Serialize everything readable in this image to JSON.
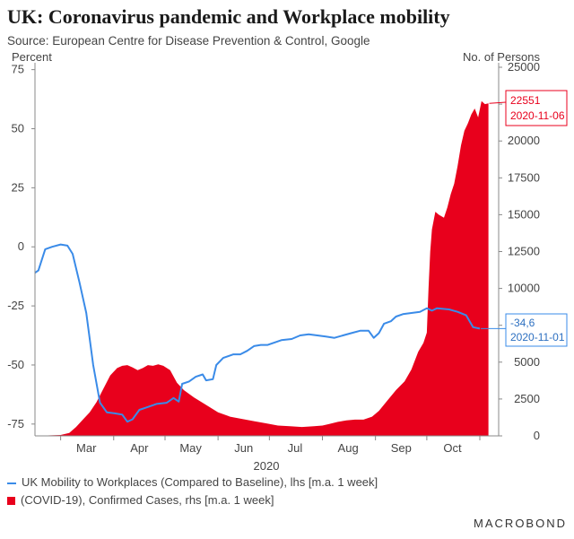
{
  "header": {
    "title": "UK: Coronavirus pandemic and Workplace mobility",
    "subtitle": "Source: European Centre for Disease Prevention & Control, Google"
  },
  "brand": "MACROBOND",
  "colors": {
    "mobility": "#3a8be8",
    "cases": "#e8001c"
  },
  "chart_data": {
    "type": "line",
    "left_axis": {
      "label": "Percent",
      "ticks": [
        75,
        50,
        25,
        0,
        -25,
        -50,
        -75
      ],
      "range": [
        -80,
        76
      ]
    },
    "right_axis": {
      "label": "No. of Persons",
      "ticks": [
        25000,
        22500,
        20000,
        17500,
        15000,
        12500,
        10000,
        7500,
        5000,
        2500,
        0
      ],
      "range": [
        0,
        25000
      ]
    },
    "x_axis": {
      "label": "2020",
      "range": [
        "2020-02-15",
        "2020-11-12"
      ],
      "month_labels": [
        "Mar",
        "Apr",
        "May",
        "Jun",
        "Jul",
        "Aug",
        "Sep",
        "Oct"
      ]
    },
    "series": [
      {
        "name": "UK Mobility to Workplaces (Compared to Baseline), lhs [m.a. 1 week]",
        "axis": "left",
        "type": "line",
        "points": [
          [
            "2020-02-15",
            -11
          ],
          [
            "2020-02-17",
            -10
          ],
          [
            "2020-02-21",
            -1
          ],
          [
            "2020-02-25",
            0
          ],
          [
            "2020-03-01",
            1
          ],
          [
            "2020-03-05",
            0.5
          ],
          [
            "2020-03-08",
            -3
          ],
          [
            "2020-03-12",
            -15
          ],
          [
            "2020-03-16",
            -28
          ],
          [
            "2020-03-20",
            -50
          ],
          [
            "2020-03-24",
            -66
          ],
          [
            "2020-03-28",
            -70
          ],
          [
            "2020-04-02",
            -70.5
          ],
          [
            "2020-04-06",
            -71
          ],
          [
            "2020-04-09",
            -74
          ],
          [
            "2020-04-12",
            -73
          ],
          [
            "2020-04-16",
            -69
          ],
          [
            "2020-04-20",
            -68
          ],
          [
            "2020-04-26",
            -66.5
          ],
          [
            "2020-05-02",
            -66
          ],
          [
            "2020-05-06",
            -64
          ],
          [
            "2020-05-09",
            -65.5
          ],
          [
            "2020-05-11",
            -58
          ],
          [
            "2020-05-15",
            -57
          ],
          [
            "2020-05-19",
            -55
          ],
          [
            "2020-05-23",
            -54
          ],
          [
            "2020-05-25",
            -56.5
          ],
          [
            "2020-05-29",
            -56
          ],
          [
            "2020-05-31",
            -50
          ],
          [
            "2020-06-04",
            -47
          ],
          [
            "2020-06-10",
            -45.5
          ],
          [
            "2020-06-14",
            -45.5
          ],
          [
            "2020-06-18",
            -44
          ],
          [
            "2020-06-22",
            -42
          ],
          [
            "2020-06-26",
            -41.5
          ],
          [
            "2020-06-30",
            -41.5
          ],
          [
            "2020-07-04",
            -40.5
          ],
          [
            "2020-07-08",
            -39.5
          ],
          [
            "2020-07-14",
            -39
          ],
          [
            "2020-07-19",
            -37.5
          ],
          [
            "2020-07-24",
            -37
          ],
          [
            "2020-07-29",
            -37.5
          ],
          [
            "2020-08-03",
            -38
          ],
          [
            "2020-08-08",
            -38.5
          ],
          [
            "2020-08-13",
            -37.5
          ],
          [
            "2020-08-18",
            -36.5
          ],
          [
            "2020-08-23",
            -35.5
          ],
          [
            "2020-08-28",
            -35.5
          ],
          [
            "2020-08-31",
            -38.5
          ],
          [
            "2020-09-03",
            -36.5
          ],
          [
            "2020-09-06",
            -32.5
          ],
          [
            "2020-09-10",
            -31.5
          ],
          [
            "2020-09-13",
            -29.5
          ],
          [
            "2020-09-17",
            -28.5
          ],
          [
            "2020-09-22",
            -28
          ],
          [
            "2020-09-27",
            -27.5
          ],
          [
            "2020-10-01",
            -26
          ],
          [
            "2020-10-04",
            -27
          ],
          [
            "2020-10-07",
            -26
          ],
          [
            "2020-10-14",
            -26.5
          ],
          [
            "2020-10-19",
            -27.5
          ],
          [
            "2020-10-24",
            -29
          ],
          [
            "2020-10-28",
            -34
          ],
          [
            "2020-11-01",
            -34.6
          ]
        ],
        "annotation": {
          "value": "-34,6",
          "date": "2020-11-01"
        }
      },
      {
        "name": "(COVID-19), Confirmed Cases, rhs [m.a. 1 week]",
        "axis": "right",
        "type": "area",
        "points": [
          [
            "2020-02-15",
            0
          ],
          [
            "2020-03-01",
            60
          ],
          [
            "2020-03-06",
            200
          ],
          [
            "2020-03-10",
            600
          ],
          [
            "2020-03-14",
            1100
          ],
          [
            "2020-03-18",
            1600
          ],
          [
            "2020-03-22",
            2300
          ],
          [
            "2020-03-26",
            3200
          ],
          [
            "2020-03-30",
            4100
          ],
          [
            "2020-04-03",
            4600
          ],
          [
            "2020-04-06",
            4750
          ],
          [
            "2020-04-09",
            4800
          ],
          [
            "2020-04-12",
            4650
          ],
          [
            "2020-04-15",
            4450
          ],
          [
            "2020-04-18",
            4600
          ],
          [
            "2020-04-21",
            4800
          ],
          [
            "2020-04-24",
            4750
          ],
          [
            "2020-04-27",
            4850
          ],
          [
            "2020-04-30",
            4750
          ],
          [
            "2020-05-04",
            4450
          ],
          [
            "2020-05-08",
            3600
          ],
          [
            "2020-05-12",
            3100
          ],
          [
            "2020-05-18",
            2600
          ],
          [
            "2020-05-25",
            2100
          ],
          [
            "2020-06-01",
            1600
          ],
          [
            "2020-06-08",
            1300
          ],
          [
            "2020-06-15",
            1150
          ],
          [
            "2020-06-22",
            1000
          ],
          [
            "2020-06-29",
            850
          ],
          [
            "2020-07-06",
            700
          ],
          [
            "2020-07-13",
            650
          ],
          [
            "2020-07-20",
            600
          ],
          [
            "2020-07-27",
            650
          ],
          [
            "2020-08-01",
            700
          ],
          [
            "2020-08-05",
            800
          ],
          [
            "2020-08-10",
            950
          ],
          [
            "2020-08-15",
            1050
          ],
          [
            "2020-08-20",
            1100
          ],
          [
            "2020-08-25",
            1100
          ],
          [
            "2020-08-30",
            1300
          ],
          [
            "2020-09-03",
            1700
          ],
          [
            "2020-09-08",
            2400
          ],
          [
            "2020-09-13",
            3100
          ],
          [
            "2020-09-18",
            3700
          ],
          [
            "2020-09-22",
            4500
          ],
          [
            "2020-09-26",
            5700
          ],
          [
            "2020-09-29",
            6300
          ],
          [
            "2020-10-01",
            7000
          ],
          [
            "2020-10-02",
            10000
          ],
          [
            "2020-10-03",
            12500
          ],
          [
            "2020-10-04",
            14000
          ],
          [
            "2020-10-06",
            15200
          ],
          [
            "2020-10-08",
            15000
          ],
          [
            "2020-10-11",
            14800
          ],
          [
            "2020-10-13",
            15500
          ],
          [
            "2020-10-15",
            16400
          ],
          [
            "2020-10-17",
            17100
          ],
          [
            "2020-10-19",
            18300
          ],
          [
            "2020-10-21",
            19700
          ],
          [
            "2020-10-23",
            20700
          ],
          [
            "2020-10-25",
            21200
          ],
          [
            "2020-10-27",
            21800
          ],
          [
            "2020-10-29",
            22200
          ],
          [
            "2020-10-31",
            21600
          ],
          [
            "2020-11-02",
            22700
          ],
          [
            "2020-11-04",
            22500
          ],
          [
            "2020-11-06",
            22551
          ]
        ],
        "annotation": {
          "value": "22551",
          "date": "2020-11-06"
        }
      }
    ],
    "grid": false,
    "legend_position": "bottom-left"
  }
}
